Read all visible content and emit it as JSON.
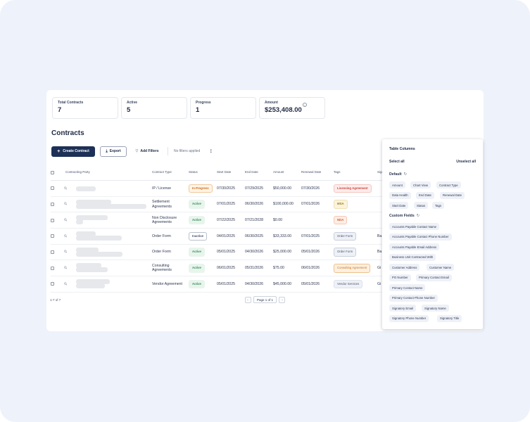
{
  "stats": [
    {
      "label": "Total Contracts",
      "value": "7"
    },
    {
      "label": "Active",
      "value": "5"
    },
    {
      "label": "Progress",
      "value": "1"
    },
    {
      "label": "Amount",
      "value": "$253,408.00"
    }
  ],
  "page_title": "Contracts",
  "toolbar": {
    "create_label": "Create Contract",
    "export_label": "Export",
    "filters_label": "Add Filters",
    "no_filters": "No filters applied"
  },
  "table": {
    "headers": {
      "party": "Contracting Party",
      "type": "Contract Type",
      "status": "Status",
      "start": "Start Date",
      "end": "End Date",
      "amount": "Amount",
      "renewal": "Renewal Date",
      "tags": "Tags",
      "signatory": "Signatory Name"
    },
    "rows": [
      {
        "type": "IP / License",
        "status": "In Progress",
        "start": "07/30/2025",
        "end": "07/29/2025",
        "amount": "$50,000.00",
        "renewal": "07/30/2026",
        "tag": "Licensing Agreement",
        "signatory": ""
      },
      {
        "type": "Settlement Agreements",
        "status": "Active",
        "start": "07/01/2025",
        "end": "06/30/2026",
        "amount": "$100,000.00",
        "renewal": "07/01/2026",
        "tag": "MSA",
        "signatory": ""
      },
      {
        "type": "Non Disclosure Agreements",
        "status": "Active",
        "start": "07/22/2025",
        "end": "07/21/2028",
        "amount": "$0.00",
        "renewal": "",
        "tag": "NDA",
        "signatory": ""
      },
      {
        "type": "Order Form",
        "status": "Inactive",
        "start": "04/01/2025",
        "end": "06/30/2025",
        "amount": "$33,333.00",
        "renewal": "07/01/2025",
        "tag": "Order Form",
        "signatory": "Ba"
      },
      {
        "type": "Order Form",
        "status": "Active",
        "start": "05/01/2025",
        "end": "04/30/2026",
        "amount": "$25,000.00",
        "renewal": "05/01/2026",
        "tag": "Order Form",
        "signatory": "Ba"
      },
      {
        "type": "Consulting Agreements",
        "status": "Active",
        "start": "06/01/2025",
        "end": "05/31/2026",
        "amount": "$75.00",
        "renewal": "06/01/2026",
        "tag": "Consulting Agreement",
        "signatory": "Gi"
      },
      {
        "type": "Vendor Agreement",
        "status": "Active",
        "start": "05/01/2025",
        "end": "04/30/2026",
        "amount": "$45,000.00",
        "renewal": "05/01/2026",
        "tag": "Vendor Services",
        "signatory": "Gi"
      }
    ]
  },
  "footer": {
    "count": "1-7 of 7",
    "page_label": "Page 1 of 1"
  },
  "columns_panel": {
    "title": "Table Columns",
    "select_all": "Select all",
    "unselect_all": "Unselect all",
    "default_label": "Default",
    "default_chips": [
      "Amount",
      "Chart View",
      "Contract Type",
      "Data Health",
      "End Date",
      "Renewal Date",
      "Start Date",
      "Status",
      "Tags"
    ],
    "custom_label": "Custom Fields",
    "custom_chips": [
      "Accounts Payable Contact Name",
      "Accounts Payable Contact Phone Number",
      "Accounts Payable Email Address",
      "Business Unit Contracted With",
      "Customer Address",
      "Customer Name",
      "PO Number",
      "Primary Contact Email",
      "Primary Contact Name",
      "Primary Contact Phone Number",
      "Signatory Email",
      "Signatory Name",
      "Signatory Phone Number",
      "Signatory Title"
    ]
  },
  "icons": [
    "plus-icon",
    "download-icon",
    "filter-icon",
    "kebab-icon",
    "link-icon",
    "refresh-icon",
    "info-icon",
    "arrow-left-icon",
    "arrow-right-icon"
  ]
}
